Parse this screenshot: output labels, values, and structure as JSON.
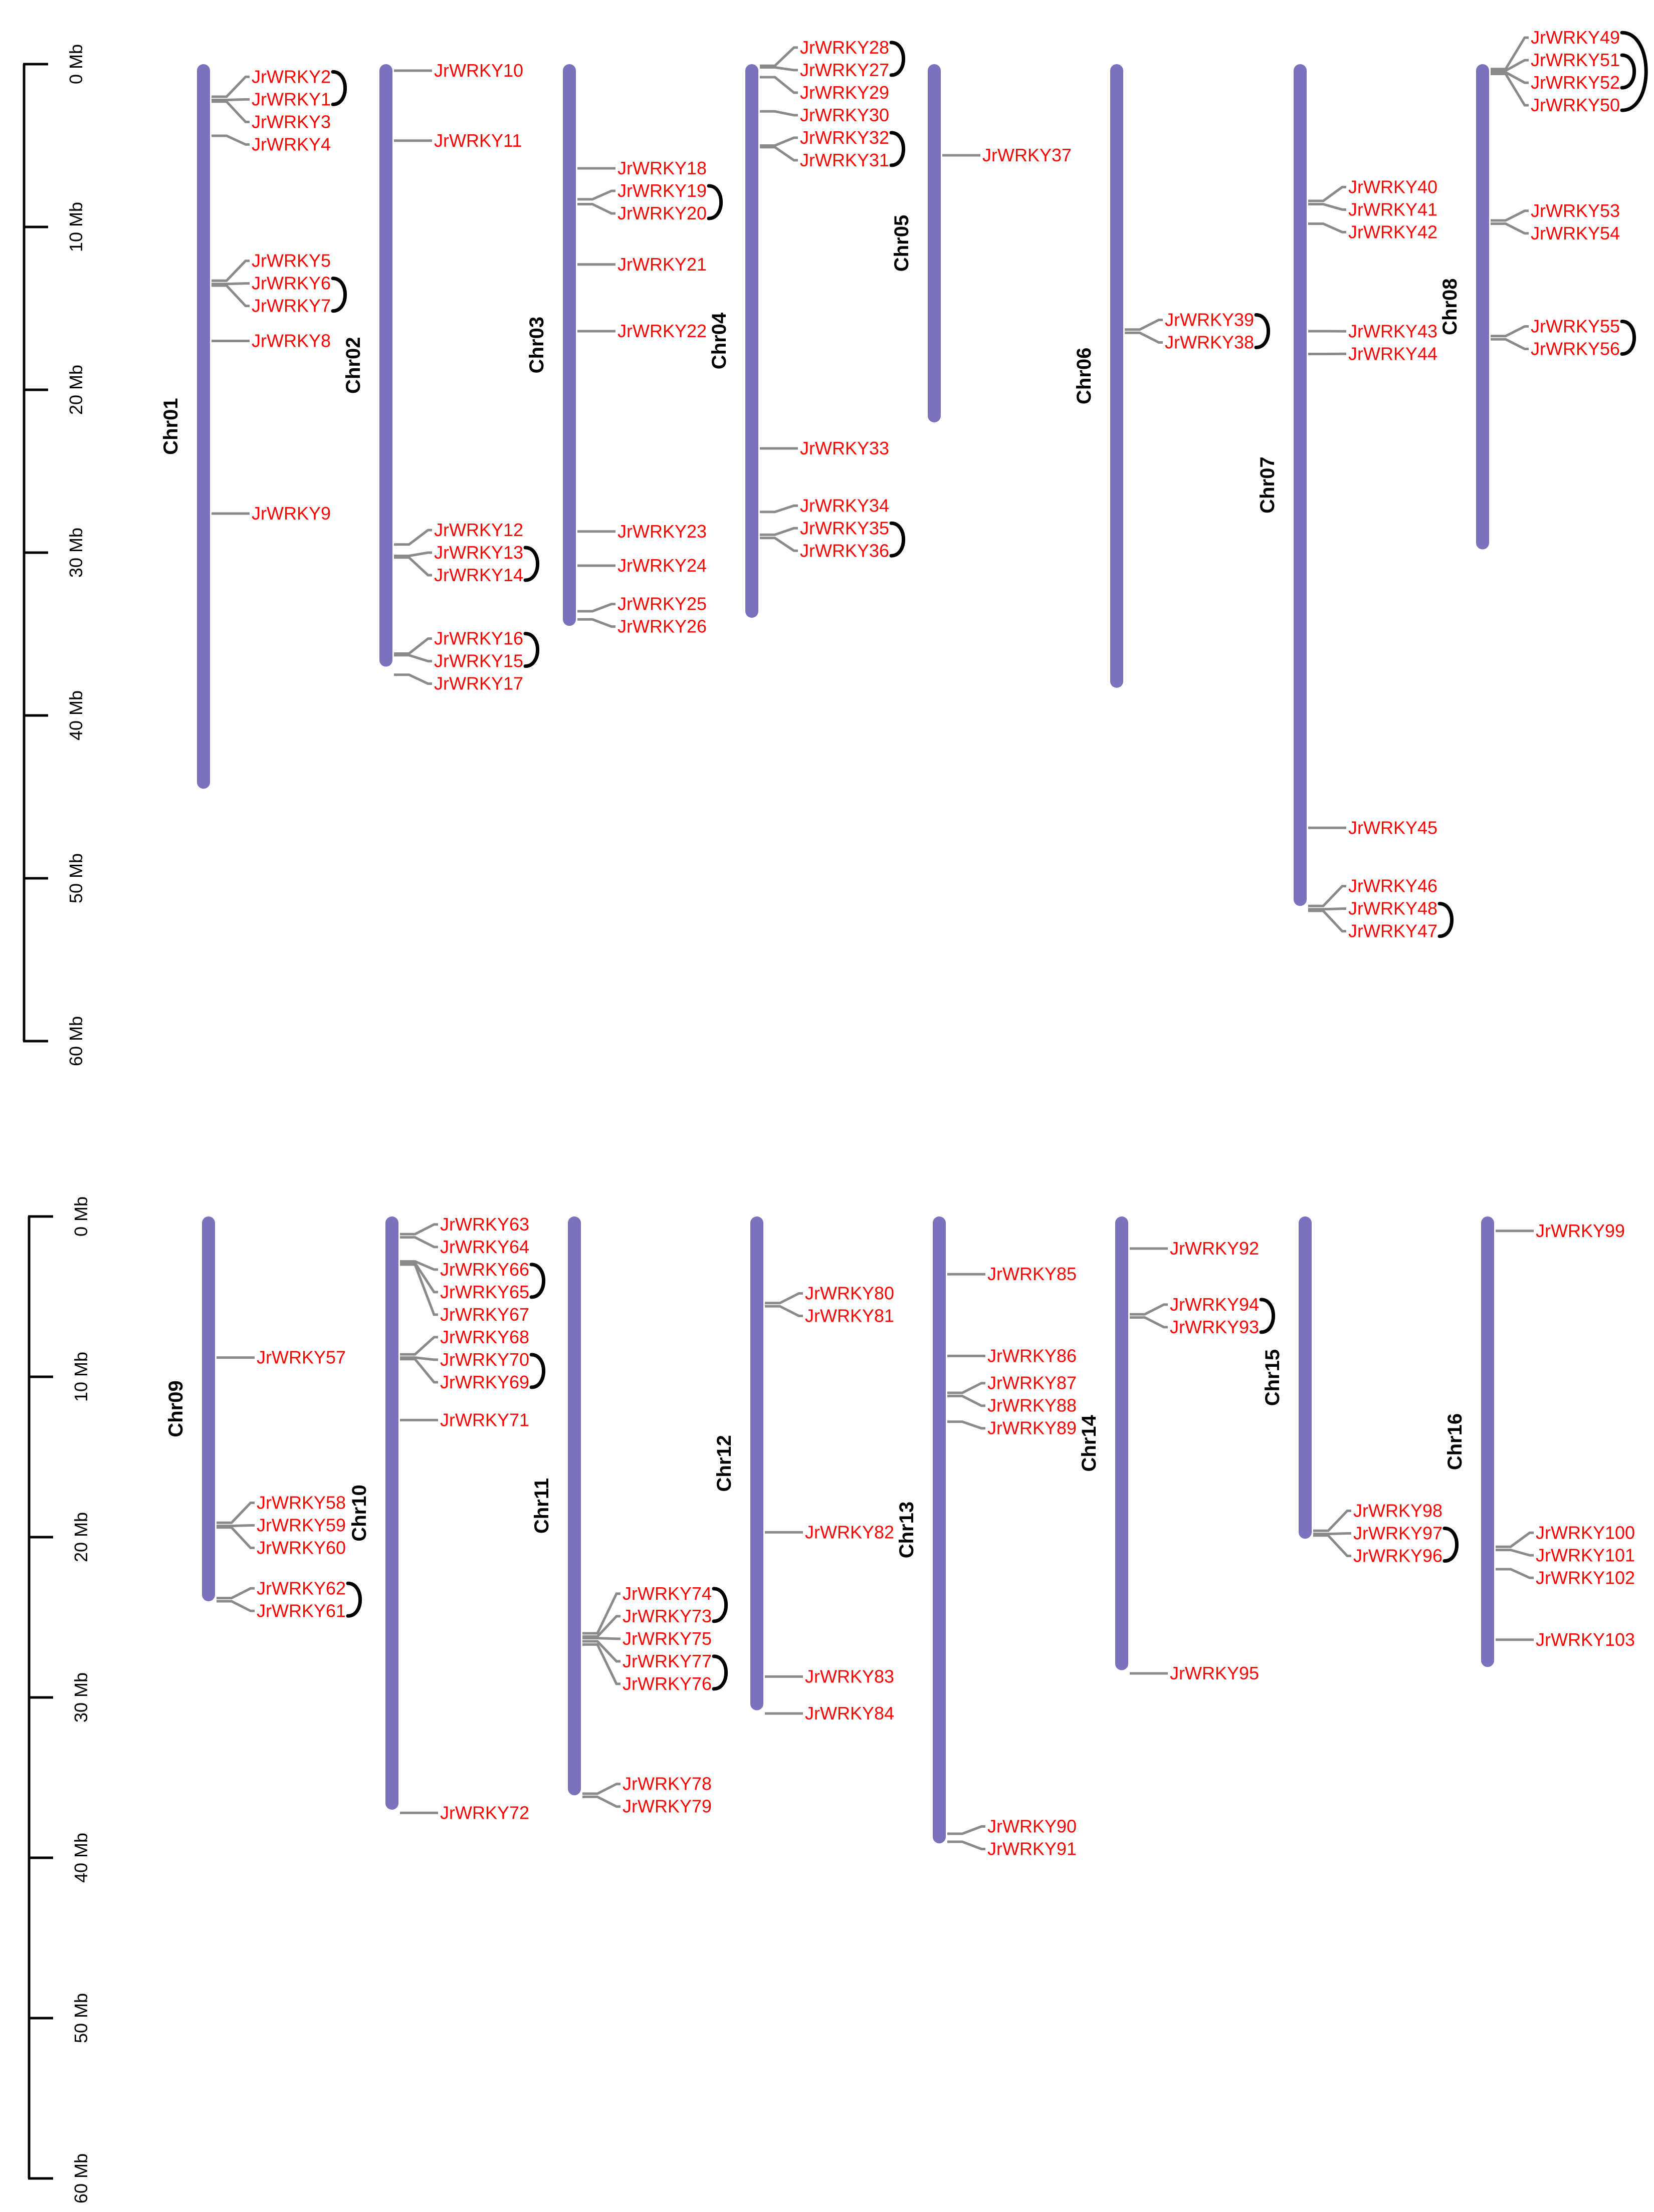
{
  "colors": {
    "chromosome": "#7a72bd",
    "gene_label": "#ff0000",
    "leader_line": "#8a8a8a",
    "duplication_arc": "#000000"
  },
  "chart_data": {
    "type": "chromosome-map",
    "unit": "Mb",
    "axis_ticks": [
      "0 Mb",
      "10 Mb",
      "20 Mb",
      "30 Mb",
      "40 Mb",
      "50 Mb",
      "60 Mb"
    ],
    "panels": [
      {
        "chromosomes": [
          {
            "name": "Chr01",
            "length": 44.5,
            "genes": [
              {
                "name": "JrWRKY2",
                "pos": 2.0
              },
              {
                "name": "JrWRKY1",
                "pos": 2.2
              },
              {
                "name": "JrWRKY3",
                "pos": 2.3
              },
              {
                "name": "JrWRKY4",
                "pos": 4.4
              },
              {
                "name": "JrWRKY5",
                "pos": 13.3
              },
              {
                "name": "JrWRKY6",
                "pos": 13.5
              },
              {
                "name": "JrWRKY7",
                "pos": 13.6
              },
              {
                "name": "JrWRKY8",
                "pos": 17.0
              },
              {
                "name": "JrWRKY9",
                "pos": 27.6
              }
            ]
          },
          {
            "name": "Chr02",
            "length": 37.0,
            "genes": [
              {
                "name": "JrWRKY10",
                "pos": 0.4
              },
              {
                "name": "JrWRKY11",
                "pos": 4.7
              },
              {
                "name": "JrWRKY12",
                "pos": 29.5
              },
              {
                "name": "JrWRKY13",
                "pos": 30.2
              },
              {
                "name": "JrWRKY14",
                "pos": 30.3
              },
              {
                "name": "JrWRKY16",
                "pos": 36.2
              },
              {
                "name": "JrWRKY15",
                "pos": 36.3
              },
              {
                "name": "JrWRKY17",
                "pos": 37.5
              }
            ]
          },
          {
            "name": "Chr03",
            "length": 34.5,
            "genes": [
              {
                "name": "JrWRKY18",
                "pos": 6.4
              },
              {
                "name": "JrWRKY19",
                "pos": 8.3
              },
              {
                "name": "JrWRKY20",
                "pos": 8.6
              },
              {
                "name": "JrWRKY21",
                "pos": 12.3
              },
              {
                "name": "JrWRKY22",
                "pos": 16.4
              },
              {
                "name": "JrWRKY23",
                "pos": 28.7
              },
              {
                "name": "JrWRKY24",
                "pos": 30.8
              },
              {
                "name": "JrWRKY25",
                "pos": 33.6
              },
              {
                "name": "JrWRKY26",
                "pos": 34.1
              }
            ]
          },
          {
            "name": "Chr04",
            "length": 34.0,
            "genes": [
              {
                "name": "JrWRKY28",
                "pos": 0.1
              },
              {
                "name": "JrWRKY27",
                "pos": 0.2
              },
              {
                "name": "JrWRKY29",
                "pos": 0.8
              },
              {
                "name": "JrWRKY30",
                "pos": 2.9
              },
              {
                "name": "JrWRKY32",
                "pos": 5.0
              },
              {
                "name": "JrWRKY31",
                "pos": 5.1
              },
              {
                "name": "JrWRKY33",
                "pos": 23.6
              },
              {
                "name": "JrWRKY34",
                "pos": 27.5
              },
              {
                "name": "JrWRKY35",
                "pos": 28.9
              },
              {
                "name": "JrWRKY36",
                "pos": 29.1
              }
            ]
          },
          {
            "name": "Chr05",
            "length": 22.0,
            "genes": [
              {
                "name": "JrWRKY37",
                "pos": 5.6
              }
            ]
          },
          {
            "name": "Chr06",
            "length": 38.3,
            "genes": [
              {
                "name": "JrWRKY39",
                "pos": 16.3
              },
              {
                "name": "JrWRKY38",
                "pos": 16.5
              }
            ]
          },
          {
            "name": "Chr07",
            "length": 51.7,
            "genes": [
              {
                "name": "JrWRKY40",
                "pos": 8.4
              },
              {
                "name": "JrWRKY41",
                "pos": 8.6
              },
              {
                "name": "JrWRKY42",
                "pos": 9.8
              },
              {
                "name": "JrWRKY43",
                "pos": 16.4
              },
              {
                "name": "JrWRKY44",
                "pos": 17.8
              },
              {
                "name": "JrWRKY45",
                "pos": 46.9
              },
              {
                "name": "JrWRKY46",
                "pos": 51.7
              },
              {
                "name": "JrWRKY48",
                "pos": 51.9
              },
              {
                "name": "JrWRKY47",
                "pos": 52.0
              }
            ]
          },
          {
            "name": "Chr08",
            "length": 29.8,
            "genes": [
              {
                "name": "JrWRKY49",
                "pos": 0.3
              },
              {
                "name": "JrWRKY51",
                "pos": 0.4
              },
              {
                "name": "JrWRKY52",
                "pos": 0.5
              },
              {
                "name": "JrWRKY50",
                "pos": 0.6
              },
              {
                "name": "JrWRKY53",
                "pos": 9.6
              },
              {
                "name": "JrWRKY54",
                "pos": 9.8
              },
              {
                "name": "JrWRKY55",
                "pos": 16.7
              },
              {
                "name": "JrWRKY56",
                "pos": 16.9
              }
            ]
          }
        ]
      },
      {
        "chromosomes": [
          {
            "name": "Chr09",
            "length": 24.0,
            "genes": [
              {
                "name": "JrWRKY57",
                "pos": 8.8
              },
              {
                "name": "JrWRKY58",
                "pos": 19.1
              },
              {
                "name": "JrWRKY59",
                "pos": 19.3
              },
              {
                "name": "JrWRKY60",
                "pos": 19.4
              },
              {
                "name": "JrWRKY62",
                "pos": 23.8
              },
              {
                "name": "JrWRKY61",
                "pos": 24.0
              }
            ]
          },
          {
            "name": "Chr10",
            "length": 37.0,
            "genes": [
              {
                "name": "JrWRKY63",
                "pos": 1.1
              },
              {
                "name": "JrWRKY64",
                "pos": 1.3
              },
              {
                "name": "JrWRKY66",
                "pos": 2.8
              },
              {
                "name": "JrWRKY65",
                "pos": 2.9
              },
              {
                "name": "JrWRKY67",
                "pos": 3.0
              },
              {
                "name": "JrWRKY68",
                "pos": 8.6
              },
              {
                "name": "JrWRKY70",
                "pos": 8.8
              },
              {
                "name": "JrWRKY69",
                "pos": 8.9
              },
              {
                "name": "JrWRKY71",
                "pos": 12.7
              },
              {
                "name": "JrWRKY72",
                "pos": 37.2
              }
            ]
          },
          {
            "name": "Chr11",
            "length": 36.1,
            "genes": [
              {
                "name": "JrWRKY74",
                "pos": 26.0
              },
              {
                "name": "JrWRKY73",
                "pos": 26.2
              },
              {
                "name": "JrWRKY75",
                "pos": 26.3
              },
              {
                "name": "JrWRKY77",
                "pos": 26.5
              },
              {
                "name": "JrWRKY76",
                "pos": 26.7
              },
              {
                "name": "JrWRKY78",
                "pos": 36.0
              },
              {
                "name": "JrWRKY79",
                "pos": 36.2
              }
            ]
          },
          {
            "name": "Chr12",
            "length": 30.8,
            "genes": [
              {
                "name": "JrWRKY80",
                "pos": 5.4
              },
              {
                "name": "JrWRKY81",
                "pos": 5.6
              },
              {
                "name": "JrWRKY82",
                "pos": 19.7
              },
              {
                "name": "JrWRKY83",
                "pos": 28.7
              },
              {
                "name": "JrWRKY84",
                "pos": 31.0
              }
            ]
          },
          {
            "name": "Chr13",
            "length": 39.1,
            "genes": [
              {
                "name": "JrWRKY85",
                "pos": 3.6
              },
              {
                "name": "JrWRKY86",
                "pos": 8.7
              },
              {
                "name": "JrWRKY87",
                "pos": 11.0
              },
              {
                "name": "JrWRKY88",
                "pos": 11.2
              },
              {
                "name": "JrWRKY89",
                "pos": 12.8
              },
              {
                "name": "JrWRKY90",
                "pos": 38.5
              },
              {
                "name": "JrWRKY91",
                "pos": 39.0
              }
            ]
          },
          {
            "name": "Chr14",
            "length": 28.3,
            "genes": [
              {
                "name": "JrWRKY92",
                "pos": 2.0
              },
              {
                "name": "JrWRKY94",
                "pos": 6.1
              },
              {
                "name": "JrWRKY93",
                "pos": 6.3
              },
              {
                "name": "JrWRKY95",
                "pos": 28.5
              }
            ]
          },
          {
            "name": "Chr15",
            "length": 20.1,
            "genes": [
              {
                "name": "JrWRKY98",
                "pos": 19.6
              },
              {
                "name": "JrWRKY97",
                "pos": 19.8
              },
              {
                "name": "JrWRKY96",
                "pos": 19.9
              }
            ]
          },
          {
            "name": "Chr16",
            "length": 28.1,
            "genes": [
              {
                "name": "JrWRKY99",
                "pos": 0.9
              },
              {
                "name": "JrWRKY100",
                "pos": 20.6
              },
              {
                "name": "JrWRKY101",
                "pos": 20.8
              },
              {
                "name": "JrWRKY102",
                "pos": 22.0
              },
              {
                "name": "JrWRKY103",
                "pos": 26.4
              }
            ]
          }
        ]
      }
    ],
    "duplicated_pairs": [
      [
        "JrWRKY2",
        "JrWRKY1"
      ],
      [
        "JrWRKY6",
        "JrWRKY7"
      ],
      [
        "JrWRKY13",
        "JrWRKY14"
      ],
      [
        "JrWRKY16",
        "JrWRKY15"
      ],
      [
        "JrWRKY19",
        "JrWRKY20"
      ],
      [
        "JrWRKY28",
        "JrWRKY27"
      ],
      [
        "JrWRKY32",
        "JrWRKY31"
      ],
      [
        "JrWRKY35",
        "JrWRKY36"
      ],
      [
        "JrWRKY39",
        "JrWRKY38"
      ],
      [
        "JrWRKY48",
        "JrWRKY47"
      ],
      [
        "JrWRKY51",
        "JrWRKY52"
      ],
      [
        "JrWRKY49",
        "JrWRKY50"
      ],
      [
        "JrWRKY55",
        "JrWRKY56"
      ],
      [
        "JrWRKY62",
        "JrWRKY61"
      ],
      [
        "JrWRKY66",
        "JrWRKY65"
      ],
      [
        "JrWRKY70",
        "JrWRKY69"
      ],
      [
        "JrWRKY74",
        "JrWRKY73"
      ],
      [
        "JrWRKY77",
        "JrWRKY76"
      ],
      [
        "JrWRKY94",
        "JrWRKY93"
      ],
      [
        "JrWRKY97",
        "JrWRKY96"
      ]
    ]
  }
}
